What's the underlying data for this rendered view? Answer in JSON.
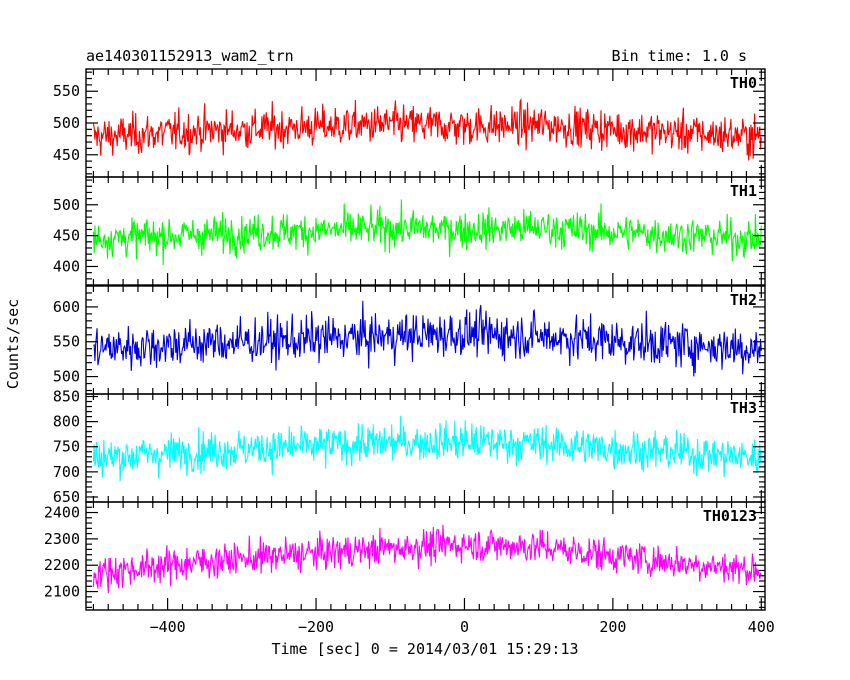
{
  "header": {
    "title": "ae140301152913_wam2_trn",
    "bin_time": "Bin time: 1.0 s"
  },
  "chart_data": {
    "type": "line",
    "xlabel": "Time [sec] 0 = 2014/03/01 15:29:13",
    "ylabel": "Counts/sec",
    "xlim": [
      -510,
      405
    ],
    "x_ticks": [
      -400,
      -200,
      0,
      200,
      400
    ],
    "x_tick_labels": [
      "−400",
      "−200",
      "0",
      "200",
      "400"
    ],
    "x_range": [
      -500,
      400
    ],
    "bin_seconds": 1.0,
    "panels": [
      {
        "name": "TH0",
        "color": "#ff0000",
        "ylim": [
          415,
          585
        ],
        "y_ticks": [
          450,
          500,
          550
        ],
        "y_tick_labels": [
          "450",
          "500",
          "550"
        ],
        "mean_profile": [
          [
            -500,
            478
          ],
          [
            -350,
            488
          ],
          [
            -100,
            498
          ],
          [
            0,
            495
          ],
          [
            100,
            497
          ],
          [
            250,
            487
          ],
          [
            400,
            478
          ]
        ],
        "noise_sd": 22
      },
      {
        "name": "TH1",
        "color": "#00ff00",
        "ylim": [
          370,
          545
        ],
        "y_ticks": [
          400,
          450,
          500
        ],
        "y_tick_labels": [
          "400",
          "450",
          "500"
        ],
        "mean_profile": [
          [
            -500,
            445
          ],
          [
            -350,
            452
          ],
          [
            -100,
            462
          ],
          [
            0,
            460
          ],
          [
            100,
            462
          ],
          [
            250,
            453
          ],
          [
            400,
            445
          ]
        ],
        "noise_sd": 21
      },
      {
        "name": "TH2",
        "color": "#0000dd",
        "ylim": [
          475,
          630
        ],
        "y_ticks": [
          500,
          550,
          600
        ],
        "y_tick_labels": [
          "500",
          "550",
          "600"
        ],
        "mean_profile": [
          [
            -500,
            540
          ],
          [
            -350,
            548
          ],
          [
            -100,
            558
          ],
          [
            0,
            562
          ],
          [
            100,
            558
          ],
          [
            250,
            548
          ],
          [
            400,
            540
          ]
        ],
        "noise_sd": 23
      },
      {
        "name": "TH3",
        "color": "#00ffff",
        "ylim": [
          640,
          855
        ],
        "y_ticks": [
          650,
          700,
          750,
          800,
          850
        ],
        "y_tick_labels": [
          "650",
          "700",
          "750",
          "800",
          "850"
        ],
        "mean_profile": [
          [
            -500,
            728
          ],
          [
            -350,
            742
          ],
          [
            -100,
            758
          ],
          [
            0,
            760
          ],
          [
            100,
            756
          ],
          [
            250,
            742
          ],
          [
            400,
            728
          ]
        ],
        "noise_sd": 27
      },
      {
        "name": "TH0123",
        "color": "#ff00ff",
        "ylim": [
          2030,
          2440
        ],
        "y_ticks": [
          2100,
          2200,
          2300,
          2400
        ],
        "y_tick_labels": [
          "2100",
          "2200",
          "2300",
          "2400"
        ],
        "mean_profile": [
          [
            -500,
            2170
          ],
          [
            -350,
            2215
          ],
          [
            -100,
            2265
          ],
          [
            0,
            2280
          ],
          [
            100,
            2270
          ],
          [
            250,
            2220
          ],
          [
            400,
            2180
          ]
        ],
        "noise_sd": 45
      }
    ]
  }
}
